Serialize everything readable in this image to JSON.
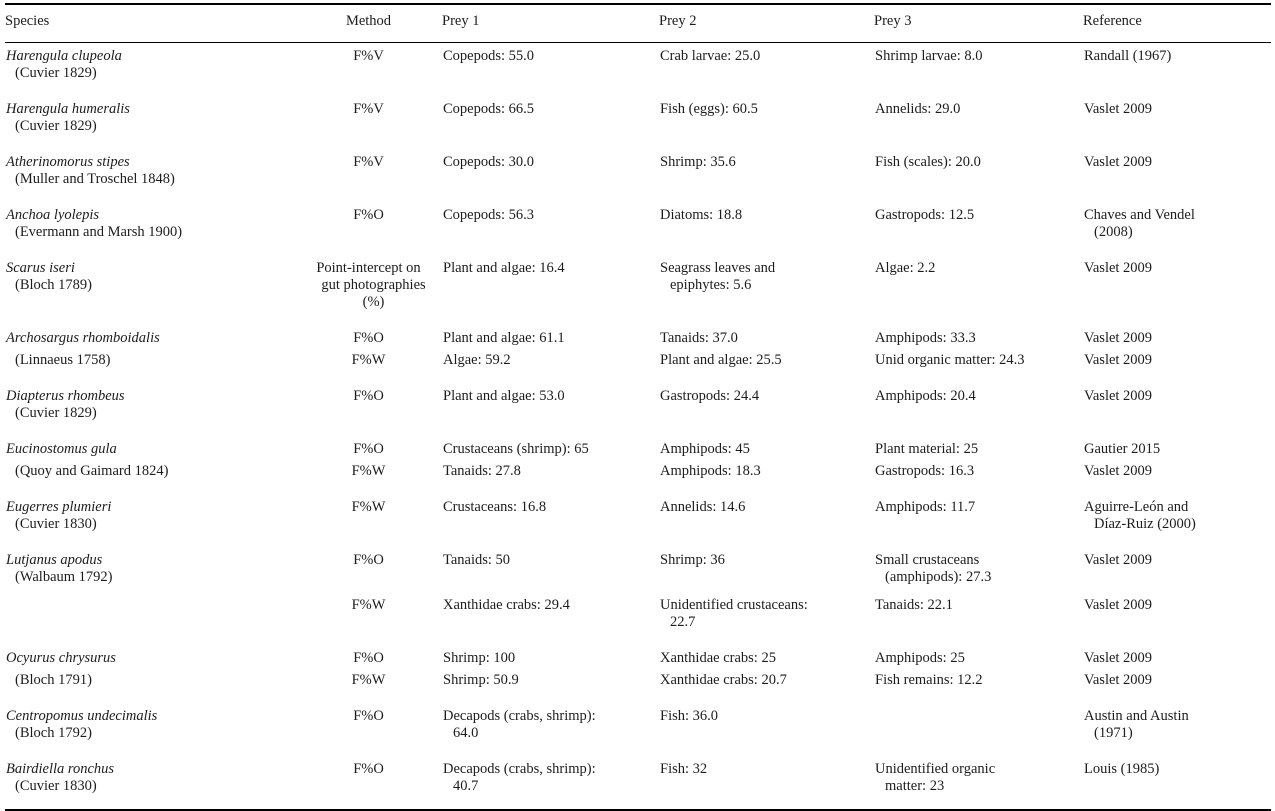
{
  "document": {
    "kind": "journal-article-table",
    "text_color": "#1c1c1c",
    "rule_color": "#000000",
    "background": "#ffffff"
  },
  "table": {
    "columns": [
      "Species",
      "Method",
      "Prey 1",
      "Prey 2",
      "Prey 3",
      "Reference"
    ],
    "rows": [
      {
        "species": "Harengula clupeola",
        "authority": "(Cuvier 1829)",
        "layout": "single",
        "entries": [
          {
            "method": "F%V",
            "prey1": "Copepods: 55.0",
            "prey2": "Crab larvae: 25.0",
            "prey3": "Shrimp larvae: 8.0",
            "reference": "Randall (1967)"
          }
        ]
      },
      {
        "species": "Harengula humeralis",
        "authority": "(Cuvier 1829)",
        "layout": "single",
        "entries": [
          {
            "method": "F%V",
            "prey1": "Copepods: 66.5",
            "prey2": "Fish (eggs): 60.5",
            "prey3": "Annelids: 29.0",
            "reference": "Vaslet 2009"
          }
        ]
      },
      {
        "species": "Atherinomorus stipes",
        "authority": "(Muller and Troschel 1848)",
        "layout": "single",
        "entries": [
          {
            "method": "F%V",
            "prey1": "Copepods: 30.0",
            "prey2": "Shrimp: 35.6",
            "prey3": "Fish (scales): 20.0",
            "reference": "Vaslet 2009"
          }
        ]
      },
      {
        "species": "Anchoa lyolepis",
        "authority": "(Evermann and Marsh 1900)",
        "layout": "single",
        "entries": [
          {
            "method": "F%O",
            "prey1": "Copepods: 56.3",
            "prey2": "Diatoms: 18.8",
            "prey3": "Gastropods: 12.5",
            "reference": "Chaves and Vendel\n(2008)"
          }
        ]
      },
      {
        "species": "Scarus iseri",
        "authority": "(Bloch 1789)",
        "layout": "single",
        "entries": [
          {
            "method": "Point-intercept on\ngut photographies\n(%)",
            "prey1": "Plant and algae: 16.4",
            "prey2": "Seagrass leaves and\nepiphytes: 5.6",
            "prey3": "Algae: 2.2",
            "reference": "Vaslet 2009"
          }
        ]
      },
      {
        "species": "Archosargus rhomboidalis",
        "authority": "(Linnaeus 1758)",
        "layout": "interleaved",
        "entries": [
          {
            "method": "F%O",
            "prey1": "Plant and algae: 61.1",
            "prey2": "Tanaids: 37.0",
            "prey3": "Amphipods: 33.3",
            "reference": "Vaslet 2009"
          },
          {
            "method": "F%W",
            "prey1": "Algae: 59.2",
            "prey2": "Plant and algae: 25.5",
            "prey3": "Unid organic matter: 24.3",
            "reference": "Vaslet 2009"
          }
        ]
      },
      {
        "species": "Diapterus rhombeus",
        "authority": "(Cuvier 1829)",
        "layout": "single",
        "entries": [
          {
            "method": "F%O",
            "prey1": "Plant and algae: 53.0",
            "prey2": "Gastropods: 24.4",
            "prey3": "Amphipods: 20.4",
            "reference": "Vaslet 2009"
          }
        ]
      },
      {
        "species": "Eucinostomus gula",
        "authority": "(Quoy and Gaimard 1824)",
        "layout": "interleaved",
        "entries": [
          {
            "method": "F%O",
            "prey1": "Crustaceans (shrimp): 65",
            "prey2": "Amphipods: 45",
            "prey3": "Plant material: 25",
            "reference": "Gautier 2015"
          },
          {
            "method": "F%W",
            "prey1": "Tanaids: 27.8",
            "prey2": "Amphipods: 18.3",
            "prey3": "Gastropods: 16.3",
            "reference": "Vaslet 2009"
          }
        ]
      },
      {
        "species": "Eugerres plumieri",
        "authority": "(Cuvier 1830)",
        "layout": "single",
        "entries": [
          {
            "method": "F%W",
            "prey1": "Crustaceans: 16.8",
            "prey2": "Annelids: 14.6",
            "prey3": "Amphipods: 11.7",
            "reference": "Aguirre-León and\nDíaz-Ruiz (2000)"
          }
        ]
      },
      {
        "species": "Lutjanus apodus",
        "authority": "(Walbaum 1792)",
        "layout": "stacked",
        "entries": [
          {
            "method": "F%O",
            "prey1": "Tanaids: 50",
            "prey2": "Shrimp: 36",
            "prey3": "Small crustaceans\n(amphipods): 27.3",
            "reference": "Vaslet 2009"
          },
          {
            "method": "F%W",
            "prey1": "Xanthidae crabs: 29.4",
            "prey2": "Unidentified crustaceans:\n22.7",
            "prey3": "Tanaids: 22.1",
            "reference": "Vaslet 2009"
          }
        ]
      },
      {
        "species": "Ocyurus chrysurus",
        "authority": "(Bloch 1791)",
        "layout": "interleaved",
        "entries": [
          {
            "method": "F%O",
            "prey1": "Shrimp: 100",
            "prey2": "Xanthidae crabs: 25",
            "prey3": "Amphipods: 25",
            "reference": "Vaslet 2009"
          },
          {
            "method": "F%W",
            "prey1": "Shrimp: 50.9",
            "prey2": "Xanthidae crabs: 20.7",
            "prey3": "Fish remains: 12.2",
            "reference": "Vaslet 2009"
          }
        ]
      },
      {
        "species": "Centropomus undecimalis",
        "authority": "(Bloch 1792)",
        "layout": "single",
        "entries": [
          {
            "method": "F%O",
            "prey1": "Decapods (crabs, shrimp):\n64.0",
            "prey2": "Fish: 36.0",
            "prey3": "",
            "reference": "Austin and Austin\n(1971)"
          }
        ]
      },
      {
        "species": "Bairdiella ronchus",
        "authority": "(Cuvier 1830)",
        "layout": "single",
        "entries": [
          {
            "method": "F%O",
            "prey1": "Decapods (crabs, shrimp):\n40.7",
            "prey2": "Fish: 32",
            "prey3": "Unidentified organic\nmatter: 23",
            "reference": "Louis (1985)"
          }
        ]
      }
    ]
  }
}
